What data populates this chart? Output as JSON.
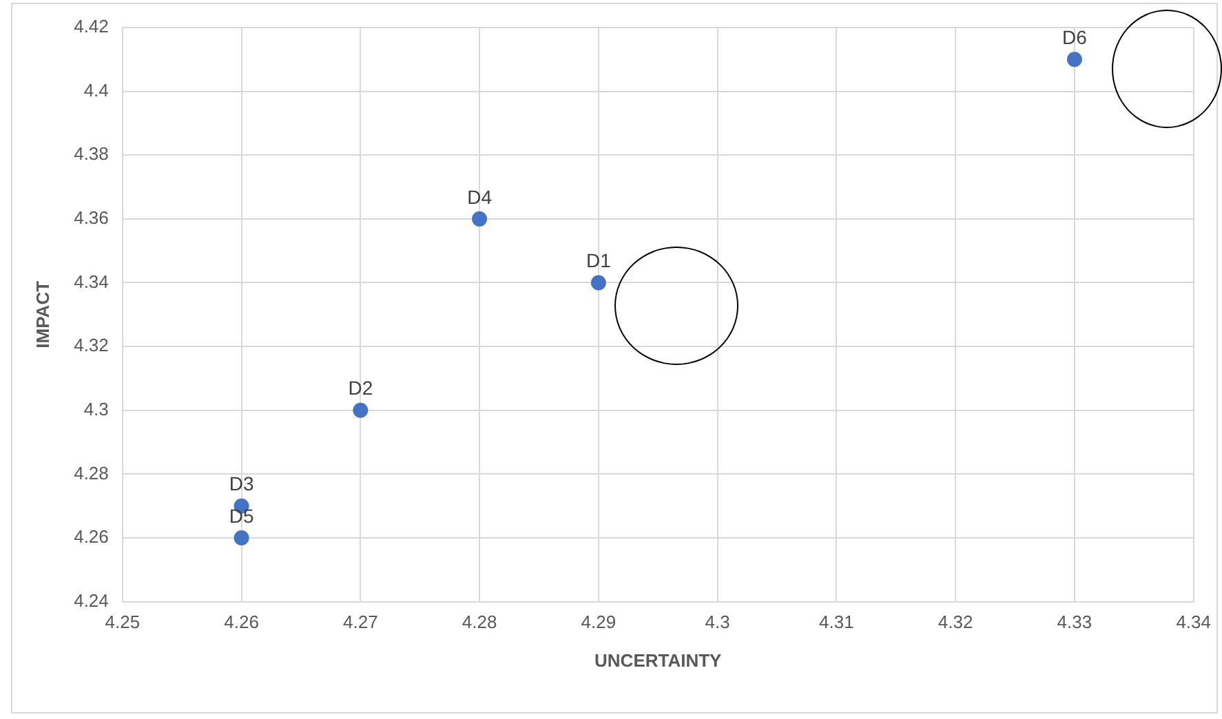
{
  "chart_data": {
    "type": "scatter",
    "xlabel": "UNCERTAINTY",
    "ylabel": "IMPACT",
    "series": [
      {
        "color": "#4472c4",
        "x": [
          4.29,
          4.27,
          4.26,
          4.28,
          4.26,
          4.33
        ],
        "values": [
          4.34,
          4.3,
          4.27,
          4.36,
          4.26,
          4.41
        ],
        "value_labels": [
          "D1",
          "D2",
          "D3",
          "D4",
          "D5",
          "D6"
        ]
      }
    ],
    "xlim": [
      4.25,
      4.34
    ],
    "xticks": [
      4.25,
      4.26,
      4.27,
      4.28,
      4.29,
      4.3,
      4.31,
      4.32,
      4.33,
      4.34
    ],
    "ylim": [
      4.24,
      4.42
    ],
    "yticks": [
      4.24,
      4.26,
      4.28,
      4.3,
      4.32,
      4.34,
      4.36,
      4.38,
      4.4,
      4.42
    ],
    "grid": true,
    "legend": false,
    "marker": "circle"
  }
}
